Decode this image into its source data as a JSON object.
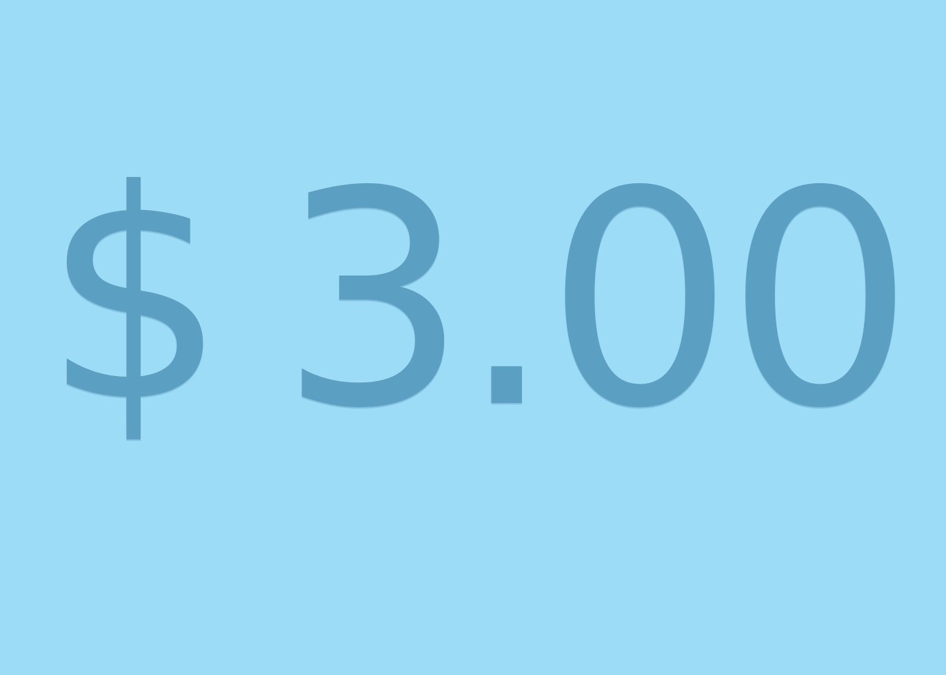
{
  "price": {
    "currency_symbol": "$",
    "amount": "3.00"
  },
  "colors": {
    "background": "#9cdcf6",
    "text": "#5ba0c3"
  }
}
